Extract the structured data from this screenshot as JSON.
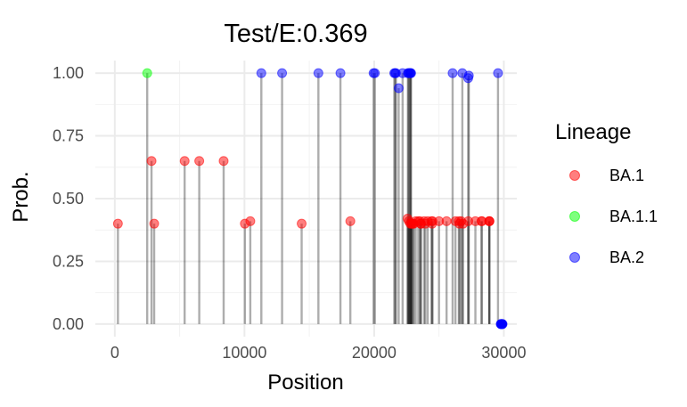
{
  "chart_data": {
    "type": "scatter",
    "style": "lollipop",
    "title": "Test/E:0.369",
    "xlabel": "Position",
    "ylabel": "Prob.",
    "xlim": [
      -1500,
      31000
    ],
    "ylim": [
      -0.05,
      1.05
    ],
    "x_ticks": [
      0,
      10000,
      20000,
      30000
    ],
    "x_tick_labels": [
      "0",
      "10000",
      "20000",
      "30000"
    ],
    "y_ticks": [
      0,
      0.25,
      0.5,
      0.75,
      1.0
    ],
    "y_tick_labels": [
      "0.00",
      "0.25",
      "0.50",
      "0.75",
      "1.00"
    ],
    "grid": true,
    "legend_title": "Lineage",
    "legend_position": "right",
    "series": [
      {
        "name": "BA.1",
        "color": "#ff0000",
        "points": [
          [
            241,
            0.4
          ],
          [
            2832,
            0.65
          ],
          [
            3037,
            0.4
          ],
          [
            5386,
            0.65
          ],
          [
            6513,
            0.65
          ],
          [
            8393,
            0.65
          ],
          [
            10029,
            0.4
          ],
          [
            10449,
            0.41
          ],
          [
            14408,
            0.4
          ],
          [
            18163,
            0.41
          ],
          [
            22578,
            0.42
          ],
          [
            22673,
            0.41
          ],
          [
            22786,
            0.4
          ],
          [
            22882,
            0.4
          ],
          [
            22898,
            0.4
          ],
          [
            22992,
            0.4
          ],
          [
            23048,
            0.4
          ],
          [
            23202,
            0.41
          ],
          [
            23403,
            0.41
          ],
          [
            23525,
            0.41
          ],
          [
            23599,
            0.4
          ],
          [
            23604,
            0.4
          ],
          [
            23854,
            0.41
          ],
          [
            23948,
            0.4
          ],
          [
            24130,
            0.41
          ],
          [
            24424,
            0.41
          ],
          [
            24469,
            0.4
          ],
          [
            24503,
            0.41
          ],
          [
            25000,
            0.41
          ],
          [
            25584,
            0.41
          ],
          [
            26270,
            0.41
          ],
          [
            26530,
            0.41
          ],
          [
            26577,
            0.4
          ],
          [
            26709,
            0.41
          ],
          [
            26858,
            0.4
          ],
          [
            27259,
            0.41
          ],
          [
            27807,
            0.41
          ],
          [
            28271,
            0.41
          ],
          [
            28311,
            0.41
          ],
          [
            28881,
            0.41
          ],
          [
            28882,
            0.41
          ],
          [
            28883,
            0.41
          ]
        ]
      },
      {
        "name": "BA.1.1",
        "color": "#00ff00",
        "points": [
          [
            2500,
            1.0
          ]
        ]
      },
      {
        "name": "BA.2",
        "color": "#0000ff",
        "points": [
          [
            11300,
            1.0
          ],
          [
            12900,
            1.0
          ],
          [
            15700,
            1.0
          ],
          [
            17400,
            1.0
          ],
          [
            19955,
            1.0
          ],
          [
            20055,
            1.0
          ],
          [
            21550,
            1.0
          ],
          [
            21618,
            1.0
          ],
          [
            21680,
            1.0
          ],
          [
            21890,
            0.94
          ],
          [
            22195,
            1.0
          ],
          [
            22600,
            1.0
          ],
          [
            22640,
            1.0
          ],
          [
            22720,
            1.0
          ],
          [
            22780,
            1.0
          ],
          [
            22810,
            1.0
          ],
          [
            22850,
            1.0
          ],
          [
            26050,
            1.0
          ],
          [
            26800,
            1.0
          ],
          [
            27250,
            0.98
          ],
          [
            27300,
            0.99
          ],
          [
            29550,
            1.0
          ],
          [
            29760,
            0.0
          ],
          [
            29780,
            0.0
          ],
          [
            29800,
            0.0
          ],
          [
            29820,
            0.0
          ],
          [
            29840,
            0.0
          ],
          [
            29860,
            0.0
          ],
          [
            29880,
            0.0
          ],
          [
            29900,
            0.0
          ]
        ]
      }
    ]
  }
}
